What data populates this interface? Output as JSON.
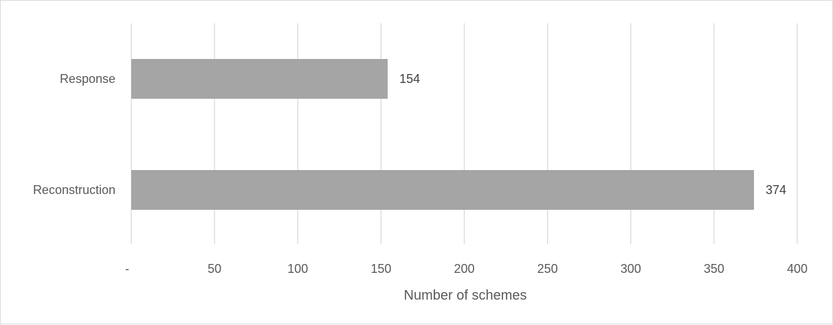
{
  "chart_data": {
    "type": "bar",
    "orientation": "horizontal",
    "categories": [
      "Response",
      "Reconstruction"
    ],
    "values": [
      154,
      374
    ],
    "data_labels": [
      "154",
      "374"
    ],
    "title": "",
    "xlabel": "Number of schemes",
    "ylabel": "",
    "xlim": [
      0,
      400
    ],
    "x_ticks": [
      0,
      50,
      100,
      150,
      200,
      250,
      300,
      350,
      400
    ],
    "x_tick_labels": [
      "-",
      "50",
      "100",
      "150",
      "200",
      "250",
      "300",
      "350",
      "400"
    ],
    "grid": "vertical",
    "legend": "none",
    "colors": {
      "bar": "#a5a5a5",
      "grid": "#d9d9d9",
      "text": "#595959",
      "data_label": "#404040"
    }
  }
}
